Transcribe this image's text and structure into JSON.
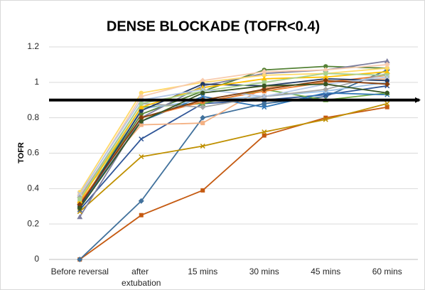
{
  "chart_data": {
    "type": "line",
    "title": "DENSE BLOCKADE (TOFR<0.4)",
    "y_label": "TOFR",
    "categories": [
      "Before reversal",
      "after extubation",
      "15 mins",
      "30 mins",
      "45 mins",
      "60 mins"
    ],
    "ylim": [
      0,
      1.2
    ],
    "yticks": [
      0,
      0.2,
      0.4,
      0.6,
      0.8,
      1,
      1.2
    ],
    "grid": true,
    "reference_line": {
      "value": 0.9,
      "color": "#000000"
    },
    "series": [
      {
        "color": "#c55a11",
        "marker": "square",
        "values": [
          0,
          0.25,
          0.39,
          0.7,
          0.8,
          0.86
        ]
      },
      {
        "color": "#41719c",
        "marker": "diamond",
        "values": [
          0,
          0.33,
          0.8,
          0.88,
          0.92,
          1.07
        ]
      },
      {
        "color": "#bf9000",
        "marker": "x",
        "values": [
          0.27,
          0.58,
          0.64,
          0.72,
          0.79,
          0.88
        ]
      },
      {
        "color": "#2f5597",
        "marker": "x",
        "values": [
          0.28,
          0.68,
          0.88,
          0.9,
          0.93,
          0.98
        ]
      },
      {
        "color": "#f4b183",
        "marker": "square",
        "values": [
          0.36,
          0.76,
          0.77,
          0.97,
          1.0,
          1.02
        ]
      },
      {
        "color": "#548235",
        "marker": "circle",
        "values": [
          0.3,
          0.82,
          0.95,
          1.07,
          1.09,
          1.08
        ]
      },
      {
        "color": "#7f7f9f",
        "marker": "triangle",
        "values": [
          0.24,
          0.8,
          0.98,
          1.05,
          1.07,
          1.12
        ]
      },
      {
        "color": "#ffd966",
        "marker": "circle",
        "values": [
          0.38,
          0.94,
          1.0,
          1.04,
          1.05,
          1.08
        ]
      },
      {
        "color": "#f8cbad",
        "marker": "diamond",
        "values": [
          0.36,
          0.92,
          1.01,
          1.06,
          1.07,
          1.1
        ]
      },
      {
        "color": "#70ad47",
        "marker": "triangle",
        "values": [
          0.3,
          0.86,
          0.88,
          0.96,
          0.9,
          0.94
        ]
      },
      {
        "color": "#2e75b6",
        "marker": "x",
        "values": [
          0.3,
          0.78,
          0.92,
          0.86,
          0.94,
          0.93
        ]
      },
      {
        "color": "#9dc3e6",
        "marker": "circle",
        "values": [
          0.34,
          0.85,
          0.9,
          0.92,
          0.95,
          1.0
        ]
      },
      {
        "color": "#ed7d31",
        "marker": "square",
        "values": [
          0.32,
          0.8,
          0.89,
          0.95,
          1.0,
          1.04
        ]
      },
      {
        "color": "#a5a5a5",
        "marker": "diamond",
        "values": [
          0.35,
          0.88,
          0.86,
          0.92,
          0.96,
          1.05
        ]
      },
      {
        "color": "#203864",
        "marker": "circle",
        "values": [
          0.3,
          0.84,
          0.99,
          0.98,
          1.02,
          1.01
        ]
      },
      {
        "color": "#ffc000",
        "marker": "triangle",
        "values": [
          0.33,
          0.86,
          0.97,
          1.02,
          1.03,
          1.06
        ]
      },
      {
        "color": "#a9d18e",
        "marker": "square",
        "values": [
          0.34,
          0.88,
          0.95,
          1.0,
          1.05,
          1.04
        ]
      },
      {
        "color": "#b4c7e7",
        "marker": "x",
        "values": [
          0.37,
          0.9,
          0.96,
          0.92,
          0.99,
          1.03
        ]
      },
      {
        "color": "#843c0c",
        "marker": "diamond",
        "values": [
          0.31,
          0.8,
          0.9,
          0.96,
          1.01,
          0.99
        ]
      },
      {
        "color": "#375623",
        "marker": "circle",
        "values": [
          0.29,
          0.78,
          0.94,
          0.98,
          0.99,
          0.94
        ]
      }
    ]
  }
}
